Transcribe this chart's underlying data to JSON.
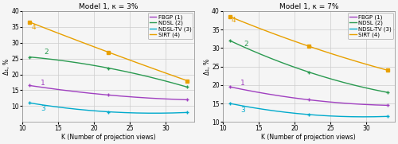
{
  "plots": [
    {
      "title": "Model 1, κ = 3%",
      "xlabel": "K (Number of projection views)",
      "ylabel": "Δ₁, %",
      "xlim": [
        10,
        34
      ],
      "ylim": [
        5,
        40
      ],
      "yticks": [
        10,
        15,
        20,
        25,
        30,
        35,
        40
      ],
      "xticks": [
        10,
        15,
        20,
        25,
        30
      ],
      "series": [
        {
          "label": "FBGP (1)",
          "color": "#a040c0",
          "marker": "+",
          "x": [
            11,
            22,
            33
          ],
          "y": [
            16.5,
            13.5,
            12.0
          ],
          "line_num": "1",
          "num_x": 12.5,
          "num_y": 17.2
        },
        {
          "label": "NDSL (2)",
          "color": "#2a9a50",
          "marker": "+",
          "x": [
            11,
            22,
            33
          ],
          "y": [
            25.5,
            22.0,
            16.0
          ],
          "line_num": "2",
          "num_x": 13.0,
          "num_y": 27.0
        },
        {
          "label": "NDSL-TV (3)",
          "color": "#00aacc",
          "marker": "+",
          "x": [
            11,
            22,
            33
          ],
          "y": [
            11.0,
            8.2,
            8.0
          ],
          "line_num": "3",
          "num_x": 12.5,
          "num_y": 9.2
        },
        {
          "label": "SIRT (4)",
          "color": "#e8a000",
          "marker": "s",
          "x": [
            11,
            22,
            33
          ],
          "y": [
            36.5,
            27.0,
            18.0
          ],
          "line_num": "4",
          "num_x": 11.2,
          "num_y": 34.8
        }
      ]
    },
    {
      "title": "Model 1, κ = 7%",
      "xlabel": "K (Number of projection views)",
      "ylabel": "Δ₁, %",
      "xlim": [
        10,
        34
      ],
      "ylim": [
        10,
        40
      ],
      "yticks": [
        10,
        15,
        20,
        25,
        30,
        35,
        40
      ],
      "xticks": [
        10,
        15,
        20,
        25,
        30
      ],
      "series": [
        {
          "label": "FBGP (1)",
          "color": "#a040c0",
          "marker": "+",
          "x": [
            11,
            22,
            33
          ],
          "y": [
            19.5,
            16.0,
            14.5
          ],
          "line_num": "1",
          "num_x": 12.5,
          "num_y": 20.5
        },
        {
          "label": "NDSL (2)",
          "color": "#2a9a50",
          "marker": "+",
          "x": [
            11,
            22,
            33
          ],
          "y": [
            32.0,
            23.5,
            18.0
          ],
          "line_num": "2",
          "num_x": 13.0,
          "num_y": 31.0
        },
        {
          "label": "NDSL-TV (3)",
          "color": "#00aacc",
          "marker": "+",
          "x": [
            11,
            22,
            33
          ],
          "y": [
            15.0,
            12.0,
            11.5
          ],
          "line_num": "3",
          "num_x": 12.5,
          "num_y": 13.2
        },
        {
          "label": "SIRT (4)",
          "color": "#e8a000",
          "marker": "s",
          "x": [
            11,
            22,
            33
          ],
          "y": [
            38.5,
            30.5,
            24.0
          ],
          "line_num": "4",
          "num_x": 11.2,
          "num_y": 37.5
        }
      ]
    }
  ],
  "background_color": "#f5f5f5",
  "grid_color": "#cccccc",
  "linewidth": 1.0,
  "markersize": 3.5,
  "fontsize_title": 6.5,
  "fontsize_axis": 5.5,
  "fontsize_tick": 5.5,
  "fontsize_legend": 5.0,
  "fontsize_label": 6.5
}
